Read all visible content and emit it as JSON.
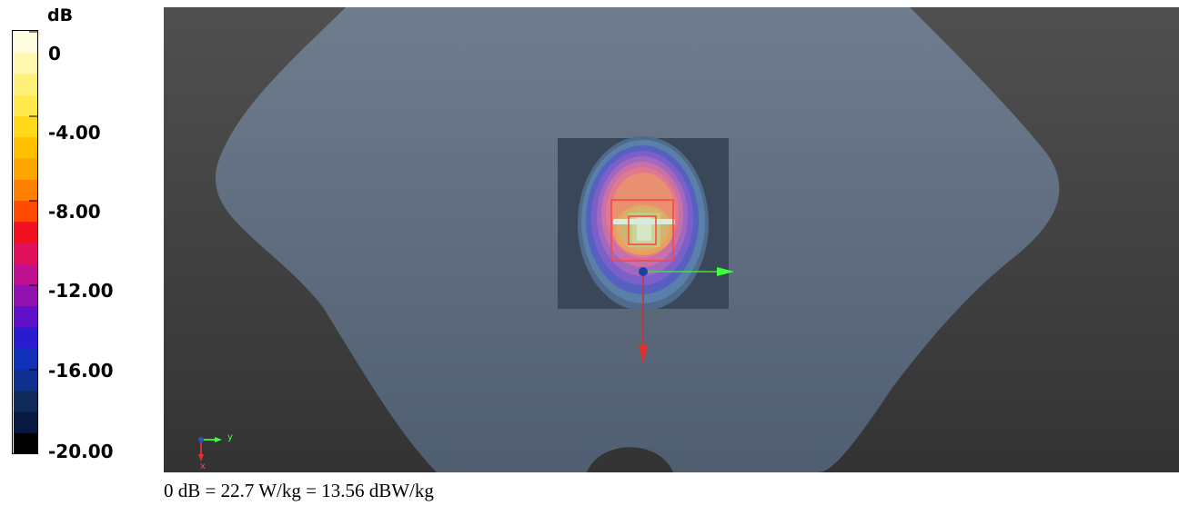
{
  "legend": {
    "unit": "dB",
    "ticks": [
      "0",
      "-4.00",
      "-8.00",
      "-12.00",
      "-16.00",
      "-20.00"
    ],
    "colors": [
      "#fffde0",
      "#fff8b0",
      "#fff27a",
      "#ffe94d",
      "#ffd91a",
      "#ffc000",
      "#ffa500",
      "#ff8000",
      "#ff4a00",
      "#f01020",
      "#e0105a",
      "#c0108f",
      "#9010b0",
      "#6010c8",
      "#2a1ad0",
      "#1030b8",
      "#103090",
      "#102a5a",
      "#081840",
      "#000000"
    ]
  },
  "scene": {
    "background_color": "#3d3d3d",
    "phantom_color": "#6b7a8c",
    "axis_labels": {
      "y": "y",
      "x": "x"
    }
  },
  "footer": {
    "reference_value": "0 dB = 22.7 W/kg = 13.56 dBW/kg"
  }
}
